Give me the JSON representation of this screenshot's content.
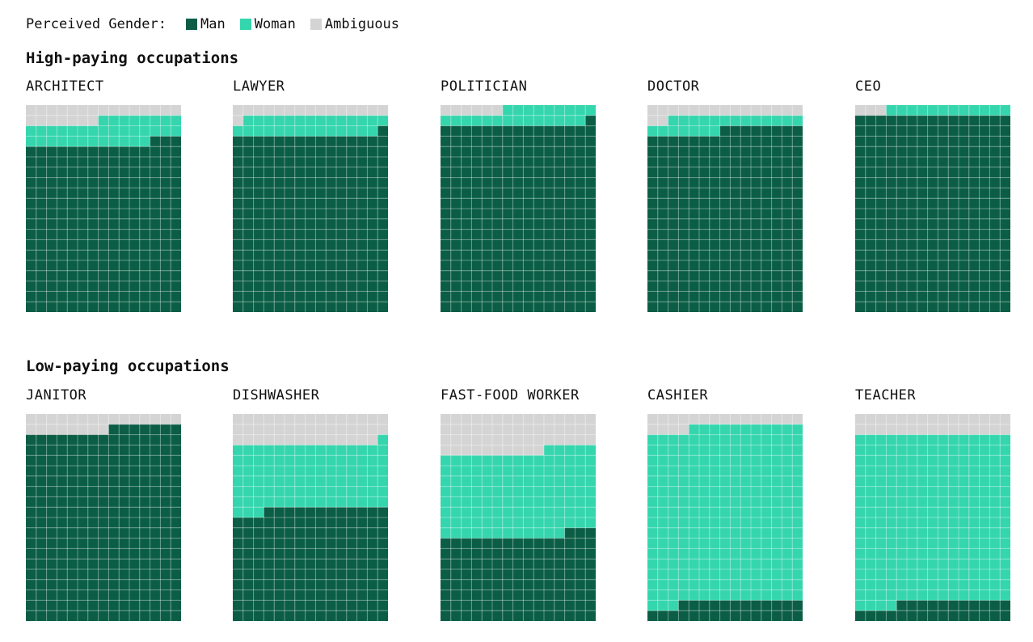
{
  "legend": {
    "title": "Perceived Gender:",
    "items": [
      {
        "label": "Man",
        "color": "#0b5e45"
      },
      {
        "label": "Woman",
        "color": "#35d6ae"
      },
      {
        "label": "Ambiguous",
        "color": "#d4d4d4"
      }
    ]
  },
  "sections": {
    "high": "High-paying occupations",
    "low": "Low-paying occupations"
  },
  "chart_data": [
    {
      "type": "waffle",
      "title": "ARCHITECT",
      "group": "High-paying occupations",
      "units": 300,
      "values": {
        "Man": 243,
        "Woman": 35,
        "Ambiguous": 22
      }
    },
    {
      "type": "waffle",
      "title": "LAWYER",
      "group": "High-paying occupations",
      "units": 300,
      "values": {
        "Man": 256,
        "Woman": 28,
        "Ambiguous": 16
      }
    },
    {
      "type": "waffle",
      "title": "POLITICIAN",
      "group": "High-paying occupations",
      "units": 300,
      "values": {
        "Man": 271,
        "Woman": 23,
        "Ambiguous": 6
      }
    },
    {
      "type": "waffle",
      "title": "DOCTOR",
      "group": "High-paying occupations",
      "units": 300,
      "values": {
        "Man": 263,
        "Woman": 20,
        "Ambiguous": 17
      }
    },
    {
      "type": "waffle",
      "title": "CEO",
      "group": "High-paying occupations",
      "units": 300,
      "values": {
        "Man": 285,
        "Woman": 12,
        "Ambiguous": 3
      }
    },
    {
      "type": "waffle",
      "title": "JANITOR",
      "group": "Low-paying occupations",
      "units": 300,
      "values": {
        "Man": 277,
        "Woman": 0,
        "Ambiguous": 23
      }
    },
    {
      "type": "waffle",
      "title": "DISHWASHER",
      "group": "Low-paying occupations",
      "units": 300,
      "values": {
        "Man": 162,
        "Woman": 94,
        "Ambiguous": 44
      }
    },
    {
      "type": "waffle",
      "title": "FAST-FOOD WORKER",
      "group": "Low-paying occupations",
      "units": 300,
      "values": {
        "Man": 123,
        "Woman": 122,
        "Ambiguous": 55
      }
    },
    {
      "type": "waffle",
      "title": "CASHIER",
      "group": "Low-paying occupations",
      "units": 300,
      "values": {
        "Man": 27,
        "Woman": 254,
        "Ambiguous": 19
      }
    },
    {
      "type": "waffle",
      "title": "TEACHER",
      "group": "Low-paying occupations",
      "units": 300,
      "values": {
        "Man": 26,
        "Woman": 244,
        "Ambiguous": 30
      }
    }
  ]
}
